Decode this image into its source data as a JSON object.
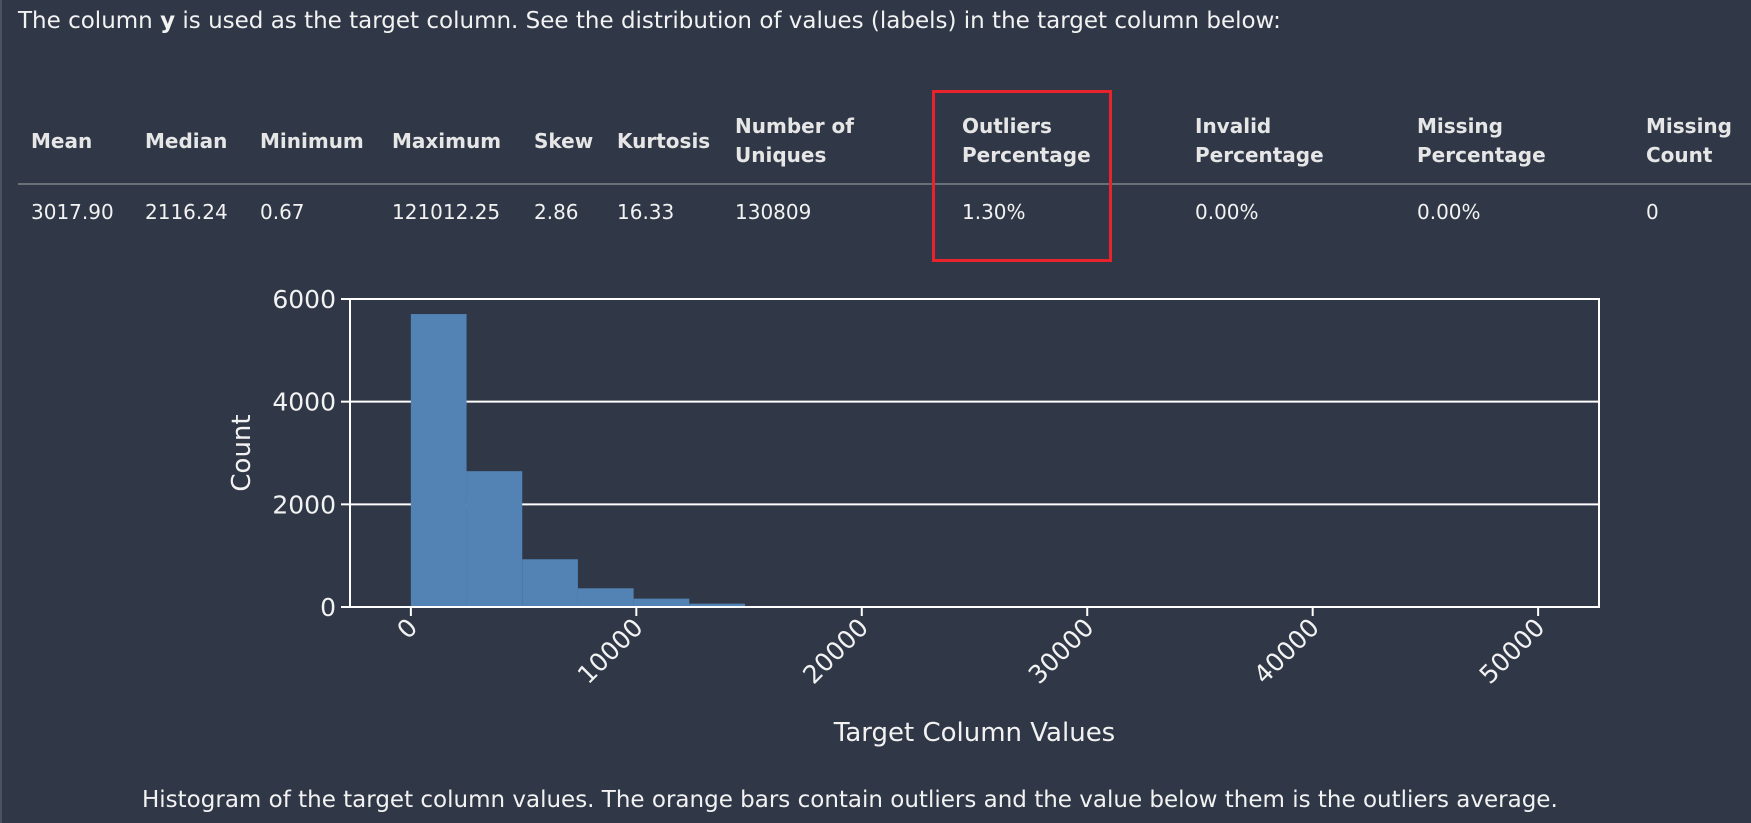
{
  "intro": {
    "before": "The column ",
    "column": "y",
    "after": " is used as the target column. See the distribution of values (labels) in the target column below:"
  },
  "table": {
    "headers": [
      [
        "Mean"
      ],
      [
        "Median"
      ],
      [
        "Minimum"
      ],
      [
        "Maximum"
      ],
      [
        "Skew"
      ],
      [
        "Kurtosis"
      ],
      [
        "Number of",
        "Uniques"
      ],
      [
        "Outliers",
        "Percentage"
      ],
      [
        "Invalid",
        "Percentage"
      ],
      [
        "Missing",
        "Percentage"
      ],
      [
        "Missing",
        "Count"
      ]
    ],
    "values": [
      "3017.90",
      "2116.24",
      "0.67",
      "121012.25",
      "2.86",
      "16.33",
      "130809",
      "1.30%",
      "0.00%",
      "0.00%",
      "0"
    ],
    "highlighted_column": "Outliers Percentage",
    "highlight_color": "#e8232b"
  },
  "chart_data": {
    "type": "bar",
    "title": "",
    "xlabel": "Target Column Values",
    "ylabel": "Count",
    "xlim": [
      -2700,
      52700
    ],
    "ylim": [
      0,
      6000
    ],
    "xticks": [
      "0",
      "10000",
      "20000",
      "30000",
      "40000",
      "50000"
    ],
    "yticks": [
      "0",
      "2000",
      "4000",
      "6000"
    ],
    "grid": "horizontal",
    "bar_color": "#5283b4",
    "bin_width": 2470,
    "bins_start": [
      0,
      2470,
      4940,
      7410,
      9880,
      12350,
      14820,
      17290,
      19760
    ],
    "values": [
      5707,
      2646,
      930,
      364,
      163,
      65,
      20,
      8,
      3
    ]
  },
  "caption": "Histogram of the target column values. The orange bars contain outliers and the value below them is the outliers average."
}
